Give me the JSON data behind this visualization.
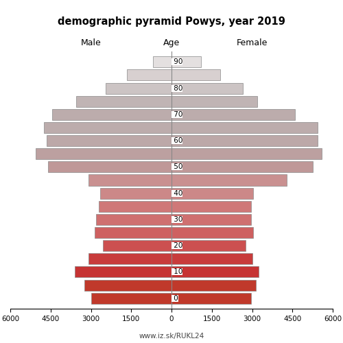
{
  "title": "demographic pyramid Powys, year 2019",
  "subtitle_left": "Male",
  "subtitle_center": "Age",
  "subtitle_right": "Female",
  "watermark": "www.iz.sk/RUKL24",
  "age_groups": [
    0,
    5,
    10,
    15,
    20,
    25,
    30,
    35,
    40,
    45,
    50,
    55,
    60,
    65,
    70,
    75,
    80,
    85,
    90
  ],
  "age_tick_labels": [
    "0",
    "",
    "10",
    "",
    "20",
    "",
    "30",
    "",
    "40",
    "",
    "50",
    "",
    "60",
    "",
    "70",
    "",
    "80",
    "",
    "90"
  ],
  "male": [
    3000,
    3250,
    3600,
    3100,
    2550,
    2850,
    2800,
    2700,
    2650,
    3100,
    4600,
    5050,
    4650,
    4750,
    4450,
    3550,
    2450,
    1650,
    680
  ],
  "female": [
    2950,
    3150,
    3250,
    3000,
    2750,
    3050,
    2950,
    2950,
    3050,
    4300,
    5250,
    5600,
    5450,
    5450,
    4600,
    3200,
    2650,
    1800,
    1100
  ],
  "xlim": 6000,
  "background_color": "#ffffff",
  "edge_color": "#888888",
  "male_colors": [
    "#c0392b",
    "#c0392b",
    "#c63333",
    "#c83b3b",
    "#cc5050",
    "#ce6060",
    "#cf7070",
    "#cf7878",
    "#cc8888",
    "#c99090",
    "#bf9898",
    "#bca0a0",
    "#bca8a8",
    "#bcacac",
    "#bcacac",
    "#c0b4b4",
    "#ccc4c4",
    "#d8d0d0",
    "#e4e0e0"
  ],
  "female_colors": [
    "#c0392b",
    "#c0392b",
    "#c63333",
    "#c83b3b",
    "#cc5050",
    "#ce6060",
    "#cf7070",
    "#cf7878",
    "#cc8888",
    "#c99090",
    "#bf9898",
    "#bca0a0",
    "#bca8a8",
    "#bcacac",
    "#bcacac",
    "#c0b4b4",
    "#ccc4c4",
    "#d8d0d0",
    "#e4e0e0"
  ]
}
